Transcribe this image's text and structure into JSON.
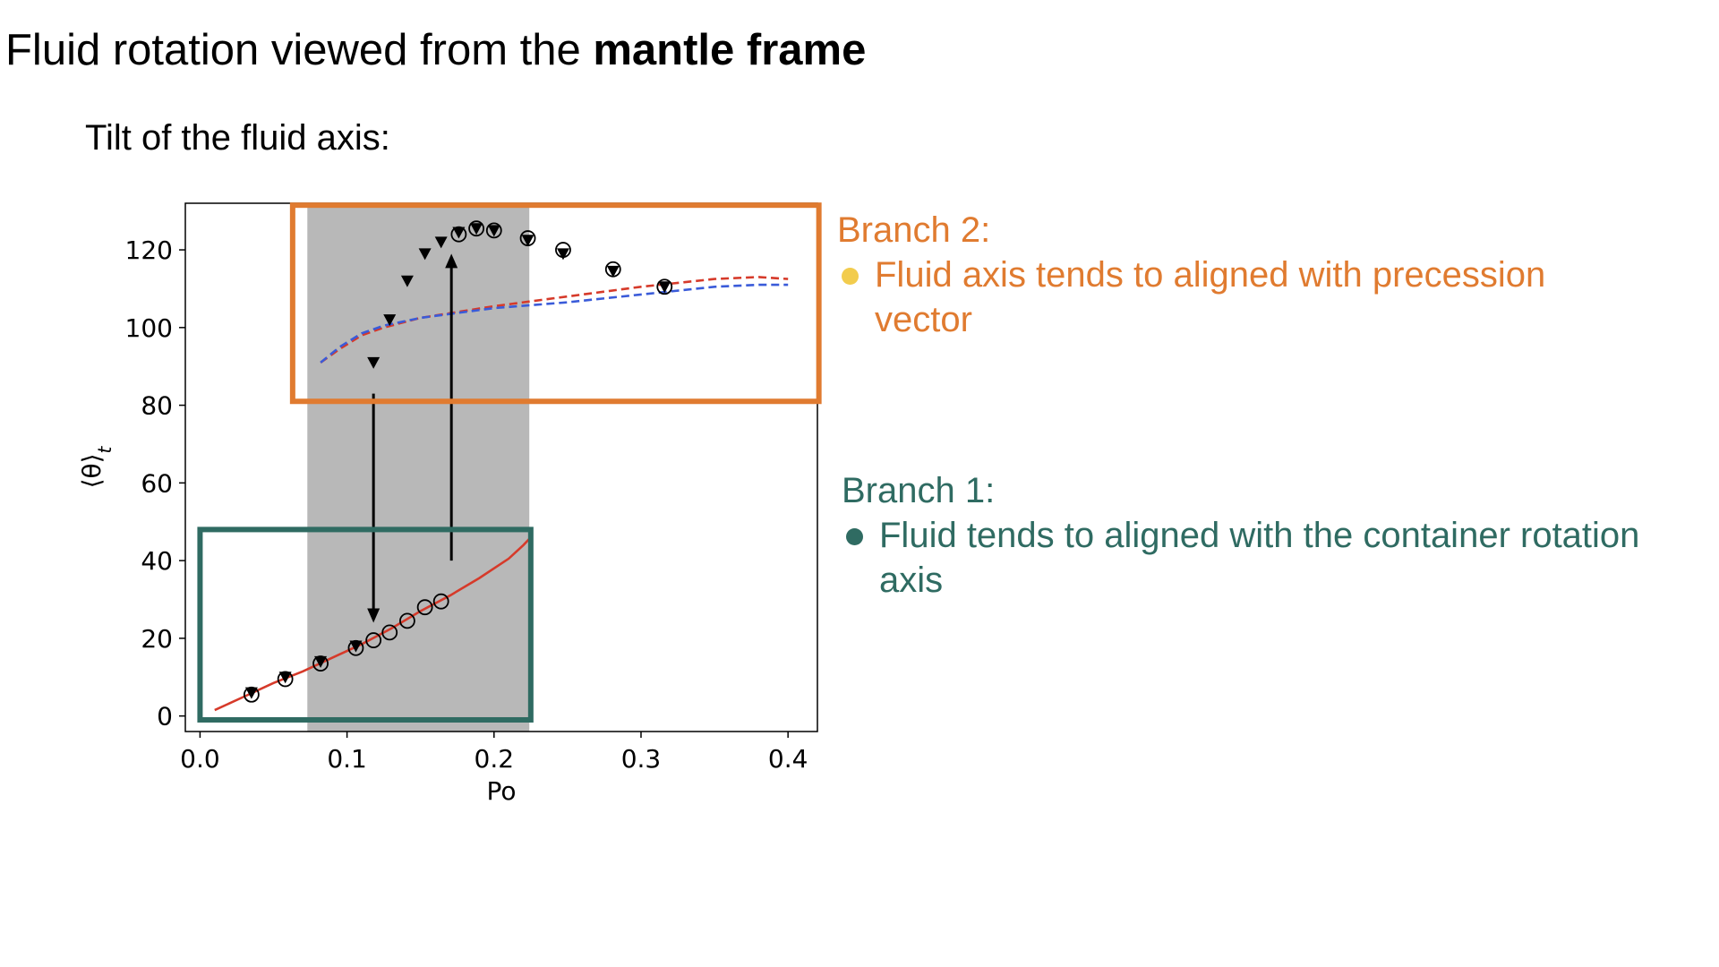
{
  "slide": {
    "title_plain": "Fluid rotation viewed from the ",
    "title_bold": "mantle frame",
    "subtitle": "Tilt of the fluid axis:"
  },
  "notes": {
    "branch2": {
      "heading": "Branch 2:",
      "bullet": "Fluid axis tends to aligned with precession vector",
      "color": "#e07b30",
      "bullet_color": "#f2cc4d"
    },
    "branch1": {
      "heading": "Branch 1:",
      "bullet": "Fluid tends to aligned with the container rotation axis",
      "color": "#2f6b62",
      "bullet_color": "#2f6b62"
    }
  },
  "chart_data": {
    "type": "scatter",
    "xlabel": "Po",
    "ylabel": "⟨θ⟩_t",
    "xlim": [
      -0.01,
      0.42
    ],
    "ylim": [
      -4,
      132
    ],
    "xticks": [
      0.0,
      0.1,
      0.2,
      0.3,
      0.4
    ],
    "xtick_labels": [
      "0.0",
      "0.1",
      "0.2",
      "0.3",
      "0.4"
    ],
    "yticks": [
      0,
      20,
      40,
      60,
      80,
      100,
      120
    ],
    "ytick_labels": [
      "0",
      "20",
      "40",
      "60",
      "80",
      "100",
      "120"
    ],
    "grid": false,
    "shaded_region": {
      "x": [
        0.073,
        0.224
      ],
      "color": "#b8b8b8"
    },
    "series": [
      {
        "marker": "circle-open",
        "x": [
          0.035,
          0.058,
          0.082,
          0.106,
          0.118,
          0.129,
          0.141,
          0.153,
          0.164,
          0.176,
          0.188,
          0.2,
          0.223,
          0.247,
          0.281,
          0.316
        ],
        "y": [
          5.5,
          9.5,
          13.5,
          17.5,
          19.5,
          21.5,
          24.5,
          28.0,
          29.5,
          124.0,
          125.5,
          125.0,
          123.0,
          120.0,
          115.0,
          110.5
        ]
      },
      {
        "marker": "triangle-down-filled",
        "x": [
          0.035,
          0.058,
          0.082,
          0.106,
          0.118,
          0.129,
          0.141,
          0.153,
          0.164,
          0.176,
          0.188,
          0.2,
          0.223,
          0.247,
          0.281,
          0.316
        ],
        "y": [
          6.0,
          10.0,
          14.0,
          18.0,
          91.0,
          102.0,
          112.0,
          119.0,
          122.0,
          124.5,
          125.5,
          125.0,
          122.5,
          119.0,
          114.5,
          110.5
        ]
      },
      {
        "line": "solid",
        "color": "#d63a2a",
        "x": [
          0.01,
          0.03,
          0.05,
          0.07,
          0.09,
          0.11,
          0.13,
          0.15,
          0.17,
          0.19,
          0.21,
          0.22,
          0.225
        ],
        "y": [
          1.5,
          5.0,
          8.5,
          11.5,
          15.0,
          18.5,
          22.5,
          27.0,
          31.0,
          35.5,
          40.5,
          44.0,
          46.0
        ]
      },
      {
        "line": "dashed",
        "color": "#d63a2a",
        "x": [
          0.082,
          0.095,
          0.11,
          0.125,
          0.15,
          0.2,
          0.25,
          0.3,
          0.35,
          0.38,
          0.4
        ],
        "y": [
          91.0,
          94.5,
          98.0,
          100.0,
          102.5,
          105.5,
          108.0,
          110.5,
          112.5,
          113.0,
          112.5
        ]
      },
      {
        "line": "dashed",
        "color": "#3a5bd9",
        "x": [
          0.082,
          0.095,
          0.11,
          0.125,
          0.15,
          0.2,
          0.25,
          0.3,
          0.35,
          0.38,
          0.4
        ],
        "y": [
          91.0,
          95.0,
          98.5,
          100.5,
          102.5,
          105.0,
          106.5,
          108.5,
          110.5,
          111.0,
          111.0
        ]
      }
    ],
    "arrows": [
      {
        "x": 0.118,
        "y_from": 83,
        "y_to": 24
      },
      {
        "x": 0.171,
        "y_from": 40,
        "y_to": 119
      }
    ],
    "boxes": [
      {
        "label_ref": "Branch 2",
        "x": [
          0.063,
          0.421
        ],
        "y": [
          81,
          131.5
        ],
        "color": "#e07b30"
      },
      {
        "label_ref": "Branch 1",
        "x": [
          0.0,
          0.225
        ],
        "y": [
          -1,
          48
        ],
        "color": "#2f6b62"
      }
    ]
  }
}
